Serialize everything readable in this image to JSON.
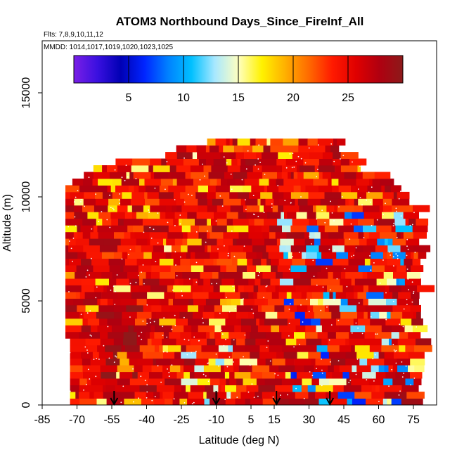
{
  "chart_data": {
    "type": "heatmap",
    "title": "ATOM3 Northbound Days_Since_FireInf_All",
    "subtitle_flights": "Flts: 7,8,9,10,11,12",
    "subtitle_dates": "MMDD: 1014,1017,1019,1020,1023,1025",
    "xlabel": "Latitude (deg N)",
    "ylabel": "Altitude (m)",
    "xlim": [
      -85,
      85
    ],
    "ylim": [
      0,
      17500
    ],
    "x_ticks": [
      -85,
      -70,
      -55,
      -40,
      -25,
      -10,
      5,
      15,
      30,
      45,
      60,
      75
    ],
    "x_tick_labels": [
      "-85",
      "-70",
      "-55",
      "-40",
      "-25",
      "-10",
      "5",
      "15",
      "30",
      "45",
      "60",
      "75"
    ],
    "y_ticks": [
      0,
      5000,
      10000,
      15000
    ],
    "y_tick_labels": [
      "0",
      "5000",
      "10000",
      "15000"
    ],
    "colorbar": {
      "range": [
        0,
        30
      ],
      "ticks": [
        5,
        10,
        15,
        20,
        25
      ],
      "tick_labels": [
        "5",
        "10",
        "15",
        "20",
        "25"
      ],
      "colors": [
        "#7a1fe6",
        "#3a10e0",
        "#0000b4",
        "#0024ff",
        "#0080ff",
        "#00c0ff",
        "#a8e8ff",
        "#ffffc0",
        "#fff200",
        "#ffb000",
        "#ff6a00",
        "#ff1a00",
        "#e00000",
        "#b00010",
        "#8c1a1a"
      ]
    },
    "grid": false,
    "value_field": "days since fire influence (color, 0-30)",
    "arrows_latitude": [
      -54,
      -10,
      16,
      39
    ],
    "profile_lat_range": [
      -75,
      77
    ]
  },
  "colors": {
    "background": "#ffffff",
    "axis": "#000000"
  }
}
